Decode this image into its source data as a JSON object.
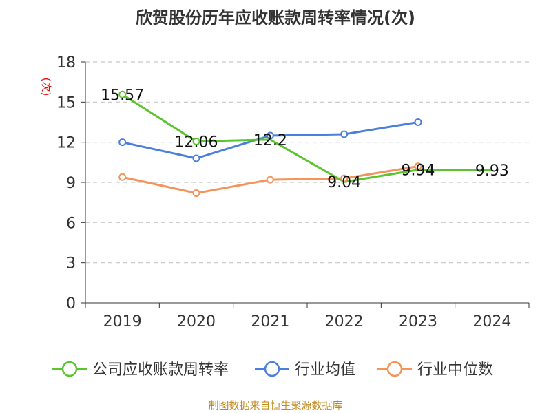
{
  "page": {
    "title": "欣贺股份历年应收账款周转率情况(次)",
    "source": "制图数据来自恒生聚源数据库"
  },
  "colors": {
    "company": "#5cc42e",
    "industry_avg": "#4a7fdc",
    "industry_median": "#f4935a",
    "grid": "#c8c8c8",
    "axis": "#333333"
  },
  "chart_data": {
    "type": "line",
    "title": "欣贺股份历年应收账款周转率情况(次)",
    "ylabel": "(次)",
    "xlabel": "",
    "categories": [
      "2019",
      "2020",
      "2021",
      "2022",
      "2023",
      "2024"
    ],
    "ylim": [
      0,
      18
    ],
    "yticks": [
      0,
      3,
      6,
      9,
      12,
      15,
      18
    ],
    "grid": true,
    "legend_position": "bottom",
    "series": [
      {
        "name": "公司应收账款周转率",
        "color": "#5cc42e",
        "values": [
          15.57,
          12.06,
          12.2,
          9.04,
          9.94,
          9.93
        ],
        "labels": [
          "15.57",
          "12.06",
          "12.2",
          "9.04",
          "9.94",
          "9.93"
        ],
        "show_markers": [
          true,
          true,
          false,
          false,
          false,
          false
        ]
      },
      {
        "name": "行业均值",
        "color": "#4a7fdc",
        "values": [
          12.0,
          10.8,
          12.5,
          12.6,
          13.5,
          null
        ],
        "show_markers": [
          true,
          true,
          true,
          true,
          true,
          false
        ]
      },
      {
        "name": "行业中位数",
        "color": "#f4935a",
        "values": [
          9.4,
          8.2,
          9.2,
          9.3,
          10.2,
          null
        ],
        "show_markers": [
          true,
          true,
          true,
          true,
          true,
          false
        ]
      }
    ]
  }
}
